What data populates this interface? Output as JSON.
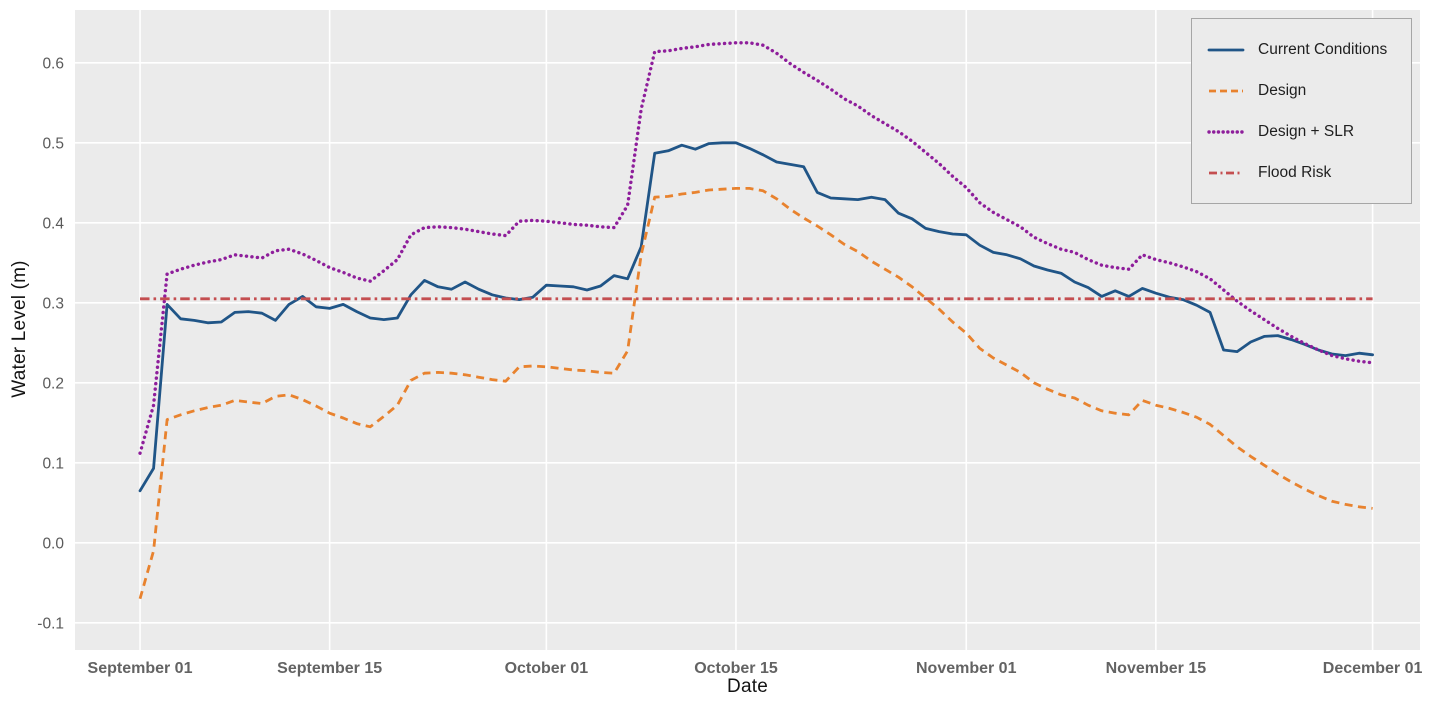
{
  "figure": {
    "bg": "#ffffff",
    "plot_bg": "#ebebeb",
    "grid_color": "#ffffff"
  },
  "axis_style": {
    "x_tick_color": "#636363",
    "y_tick_color": "#5a5a5a",
    "axis_title_color": "#141414"
  },
  "chart_data": {
    "type": "line",
    "title": "",
    "xlabel": "Date",
    "ylabel": "Water Level (m)",
    "x_unit": "days since September 01 (daily points, September 01 to December 01)",
    "n_points": 92,
    "xlim": [
      -4.8,
      94.5
    ],
    "ylim": [
      -0.134,
      0.666
    ],
    "grid": true,
    "x_ticks": [
      {
        "day": 0,
        "label": "September 01"
      },
      {
        "day": 14,
        "label": "September 15"
      },
      {
        "day": 30,
        "label": "October 01"
      },
      {
        "day": 44,
        "label": "October 15"
      },
      {
        "day": 61,
        "label": "November 01"
      },
      {
        "day": 75,
        "label": "November 15"
      },
      {
        "day": 91,
        "label": "December 01"
      }
    ],
    "y_ticks": [
      {
        "value": -0.1,
        "label": "-0.1"
      },
      {
        "value": 0.0,
        "label": "0.0"
      },
      {
        "value": 0.1,
        "label": "0.1"
      },
      {
        "value": 0.2,
        "label": "0.2"
      },
      {
        "value": 0.3,
        "label": "0.3"
      },
      {
        "value": 0.4,
        "label": "0.4"
      },
      {
        "value": 0.5,
        "label": "0.5"
      },
      {
        "value": 0.6,
        "label": "0.6"
      }
    ],
    "legend": {
      "position": "upper right",
      "bg": "#ebebeb",
      "border_color": "#a6a6a6",
      "entries": [
        "Current Conditions",
        "Design",
        "Design + SLR",
        "Flood Risk"
      ]
    },
    "series": [
      {
        "name": "Current Conditions",
        "color": "#205587",
        "style": "solid",
        "values": [
          0.065,
          0.093,
          0.298,
          0.28,
          0.278,
          0.275,
          0.276,
          0.288,
          0.289,
          0.287,
          0.278,
          0.298,
          0.308,
          0.295,
          0.293,
          0.298,
          0.289,
          0.281,
          0.279,
          0.281,
          0.31,
          0.328,
          0.32,
          0.317,
          0.326,
          0.317,
          0.31,
          0.306,
          0.304,
          0.307,
          0.322,
          0.321,
          0.32,
          0.316,
          0.321,
          0.334,
          0.33,
          0.37,
          0.487,
          0.49,
          0.497,
          0.492,
          0.499,
          0.5,
          0.5,
          0.493,
          0.485,
          0.476,
          0.473,
          0.47,
          0.438,
          0.431,
          0.43,
          0.429,
          0.432,
          0.429,
          0.412,
          0.405,
          0.393,
          0.389,
          0.386,
          0.385,
          0.372,
          0.363,
          0.36,
          0.355,
          0.346,
          0.341,
          0.337,
          0.326,
          0.319,
          0.308,
          0.315,
          0.308,
          0.318,
          0.312,
          0.307,
          0.304,
          0.297,
          0.288,
          0.241,
          0.239,
          0.251,
          0.258,
          0.259,
          0.254,
          0.248,
          0.241,
          0.236,
          0.234,
          0.237,
          0.235
        ]
      },
      {
        "name": "Design",
        "color": "#e8822e",
        "style": "dashed",
        "values": [
          -0.07,
          -0.01,
          0.154,
          0.16,
          0.165,
          0.169,
          0.172,
          0.178,
          0.176,
          0.174,
          0.183,
          0.185,
          0.179,
          0.171,
          0.162,
          0.156,
          0.149,
          0.145,
          0.158,
          0.172,
          0.203,
          0.212,
          0.213,
          0.212,
          0.21,
          0.207,
          0.204,
          0.202,
          0.22,
          0.221,
          0.22,
          0.218,
          0.216,
          0.215,
          0.213,
          0.212,
          0.24,
          0.36,
          0.432,
          0.433,
          0.436,
          0.438,
          0.441,
          0.442,
          0.443,
          0.443,
          0.44,
          0.43,
          0.417,
          0.406,
          0.396,
          0.385,
          0.373,
          0.364,
          0.352,
          0.342,
          0.332,
          0.32,
          0.306,
          0.292,
          0.276,
          0.262,
          0.243,
          0.231,
          0.222,
          0.213,
          0.2,
          0.192,
          0.185,
          0.181,
          0.172,
          0.165,
          0.162,
          0.16,
          0.178,
          0.172,
          0.168,
          0.163,
          0.157,
          0.148,
          0.134,
          0.12,
          0.108,
          0.097,
          0.086,
          0.076,
          0.067,
          0.059,
          0.052,
          0.048,
          0.045,
          0.043
        ]
      },
      {
        "name": "Design + SLR",
        "color": "#8e1e9b",
        "style": "dotted",
        "values": [
          0.112,
          0.172,
          0.336,
          0.342,
          0.347,
          0.351,
          0.354,
          0.36,
          0.358,
          0.356,
          0.365,
          0.367,
          0.361,
          0.353,
          0.344,
          0.338,
          0.331,
          0.327,
          0.34,
          0.354,
          0.385,
          0.394,
          0.395,
          0.394,
          0.392,
          0.389,
          0.386,
          0.384,
          0.402,
          0.403,
          0.402,
          0.4,
          0.398,
          0.397,
          0.395,
          0.394,
          0.422,
          0.542,
          0.614,
          0.615,
          0.618,
          0.62,
          0.623,
          0.624,
          0.625,
          0.625,
          0.622,
          0.612,
          0.599,
          0.588,
          0.578,
          0.567,
          0.555,
          0.546,
          0.534,
          0.524,
          0.514,
          0.502,
          0.488,
          0.474,
          0.458,
          0.444,
          0.425,
          0.413,
          0.404,
          0.395,
          0.382,
          0.374,
          0.367,
          0.363,
          0.354,
          0.347,
          0.344,
          0.342,
          0.36,
          0.354,
          0.35,
          0.345,
          0.339,
          0.33,
          0.316,
          0.302,
          0.29,
          0.279,
          0.268,
          0.258,
          0.249,
          0.241,
          0.234,
          0.23,
          0.227,
          0.225
        ]
      },
      {
        "name": "Flood Risk",
        "color": "#c44e50",
        "style": "dashdot",
        "constant_value": 0.305
      }
    ]
  }
}
